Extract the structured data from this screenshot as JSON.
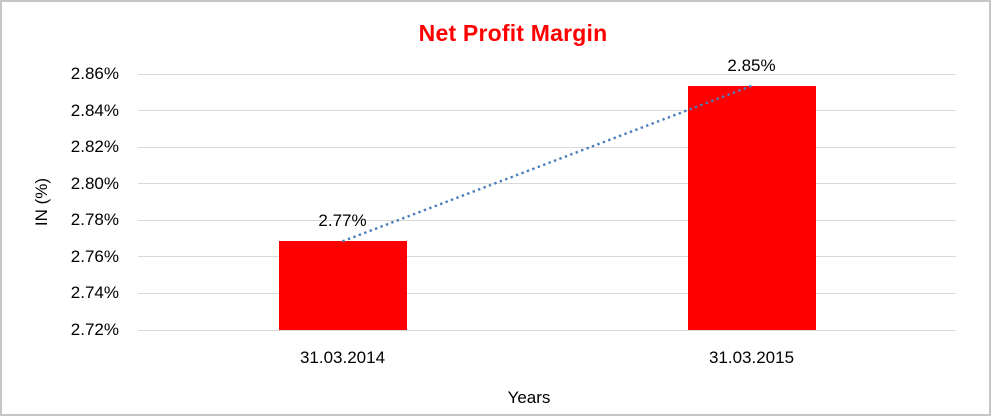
{
  "chart_data": {
    "type": "bar",
    "title": "Net Profit Margin",
    "categories": [
      "31.03.2014",
      "31.03.2015"
    ],
    "values": [
      2.77,
      2.85
    ],
    "plotted_values": [
      2.7685,
      2.8535
    ],
    "data_labels": [
      "2.77%",
      "2.85%"
    ],
    "xlabel": "Years",
    "ylabel": "IN (%)",
    "ylim": [
      2.72,
      2.86
    ],
    "ytick_step": 0.02,
    "yticks": [
      "2.86%",
      "2.84%",
      "2.82%",
      "2.80%",
      "2.78%",
      "2.76%",
      "2.74%",
      "2.72%"
    ],
    "grid": true,
    "legend": "none",
    "trendline": {
      "style": "dotted",
      "connects": "bar tops"
    }
  },
  "colors": {
    "title": "#ff0000",
    "bar": "#ff0000",
    "trendline": "#4a7ebb",
    "gridline": "#d9d9d9",
    "axis_text": "#000000",
    "frame_border": "#c6c6c6"
  }
}
